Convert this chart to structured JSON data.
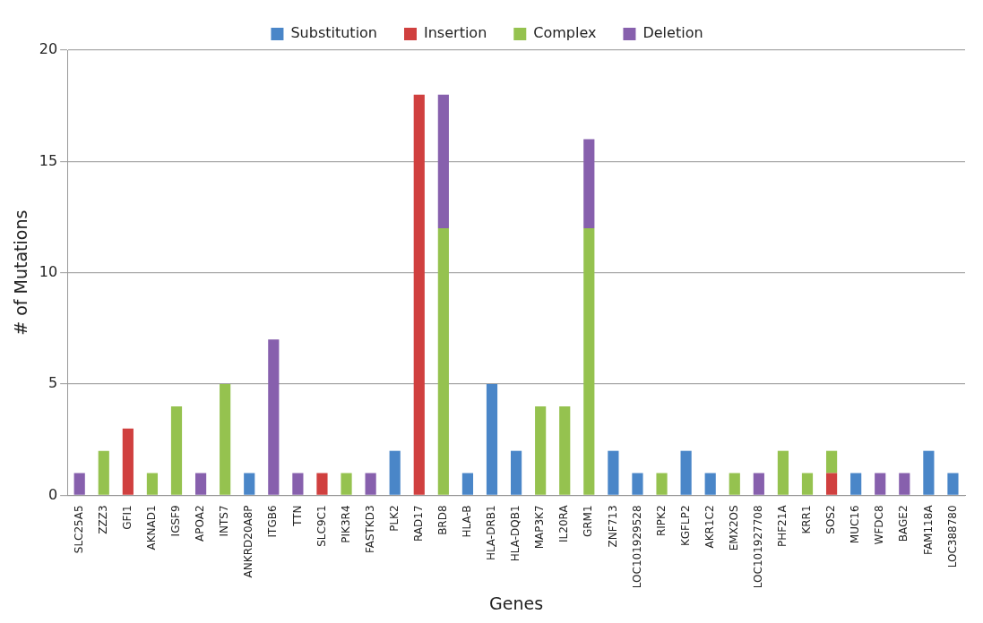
{
  "chart_data": {
    "type": "bar",
    "stacked": true,
    "xlabel": "Genes",
    "ylabel": "# of Mutations",
    "categories": [
      "SLC25A5",
      "ZZZ3",
      "GFI1",
      "AKNAD1",
      "IGSF9",
      "APOA2",
      "INTS7",
      "ANKRD20A8P",
      "ITGB6",
      "TTN",
      "SLC9C1",
      "PIK3R4",
      "FASTKD3",
      "PLK2",
      "RAD17",
      "BRD8",
      "HLA-B",
      "HLA-DRB1",
      "HLA-DQB1",
      "MAP3K7",
      "IL20RA",
      "GRM1",
      "ZNF713",
      "LOC101929528",
      "RIPK2",
      "KGFLP2",
      "AKR1C2",
      "EMX2OS",
      "LOC101927708",
      "PHF21A",
      "KRR1",
      "SOS2",
      "MUC16",
      "WFDC8",
      "BAGE2",
      "FAM118A",
      "LOC388780"
    ],
    "series": [
      {
        "name": "Substitution",
        "color": "#4a86c8",
        "values": [
          null,
          null,
          null,
          null,
          null,
          null,
          null,
          1,
          null,
          null,
          null,
          null,
          null,
          2,
          null,
          null,
          1,
          5,
          2,
          null,
          null,
          null,
          2,
          1,
          null,
          2,
          1,
          null,
          null,
          null,
          null,
          null,
          1,
          null,
          null,
          2,
          1
        ]
      },
      {
        "name": "Insertion",
        "color": "#d0403f",
        "values": [
          null,
          null,
          3,
          null,
          null,
          null,
          null,
          null,
          null,
          null,
          1,
          null,
          null,
          null,
          18,
          null,
          null,
          null,
          null,
          null,
          null,
          null,
          null,
          null,
          null,
          null,
          null,
          null,
          null,
          null,
          null,
          1,
          null,
          null,
          null,
          null,
          null
        ]
      },
      {
        "name": "Complex",
        "color": "#95c24f",
        "values": [
          null,
          2,
          null,
          1,
          4,
          null,
          5,
          null,
          null,
          null,
          null,
          1,
          null,
          null,
          null,
          12,
          null,
          null,
          null,
          4,
          4,
          12,
          null,
          null,
          1,
          null,
          null,
          1,
          null,
          2,
          1,
          1,
          null,
          null,
          null,
          null,
          null
        ]
      },
      {
        "name": "Deletion",
        "color": "#8760ad",
        "values": [
          1,
          null,
          null,
          null,
          null,
          1,
          null,
          null,
          7,
          1,
          null,
          null,
          1,
          null,
          null,
          6,
          null,
          null,
          null,
          null,
          null,
          4,
          null,
          null,
          null,
          null,
          null,
          null,
          1,
          null,
          null,
          null,
          null,
          1,
          1,
          null,
          null
        ]
      }
    ],
    "ylim": [
      0,
      20
    ],
    "yticks": [
      0,
      5,
      10,
      15,
      20
    ],
    "grid": "y",
    "legend": "top"
  }
}
